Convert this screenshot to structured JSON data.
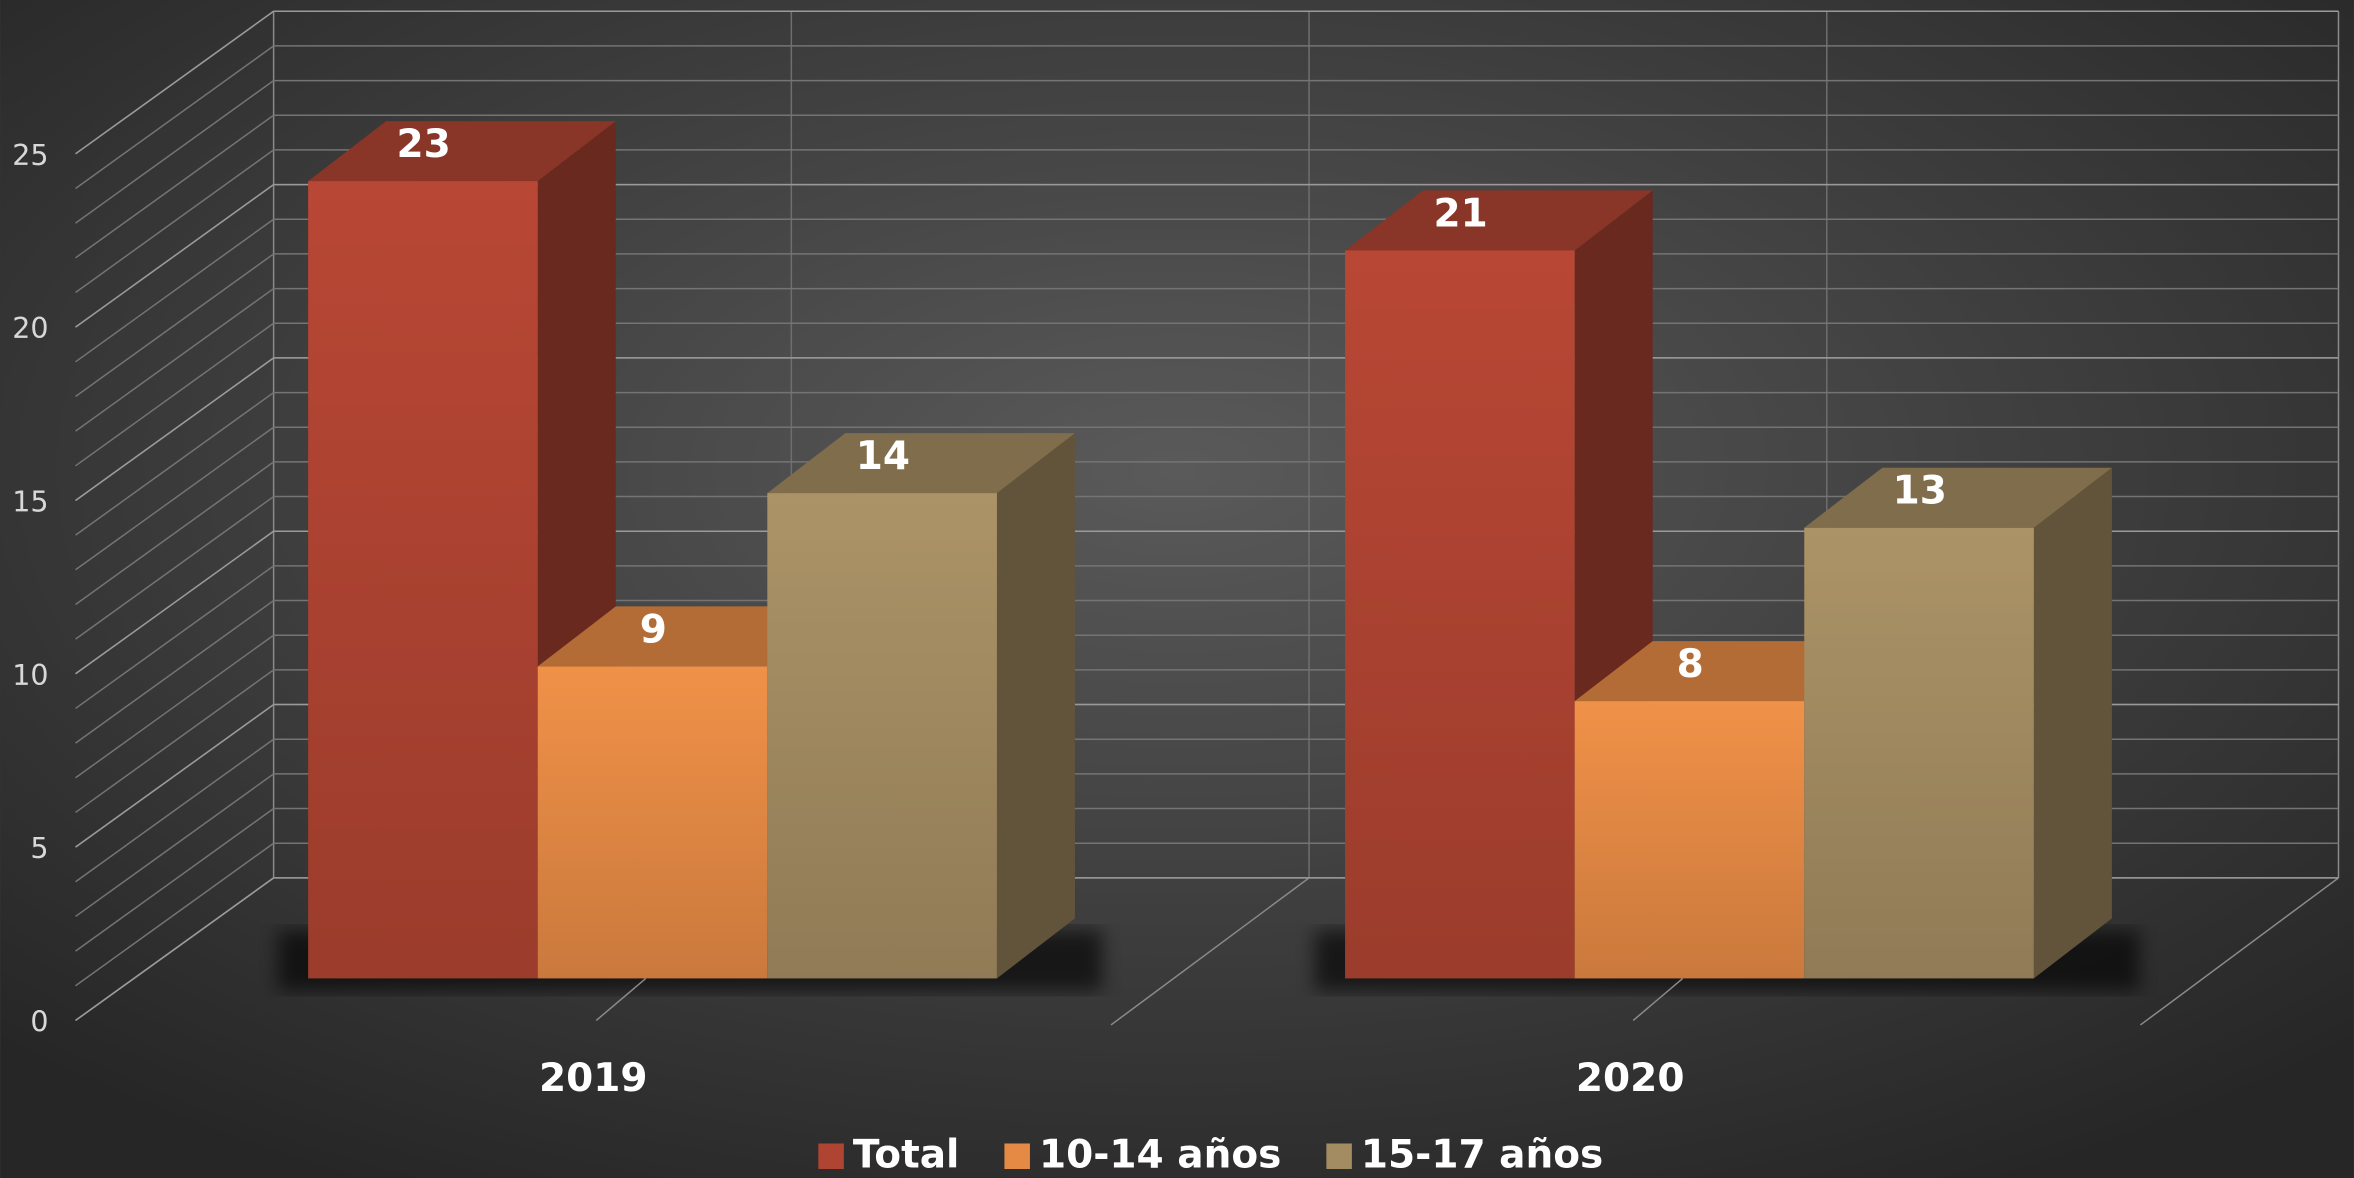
{
  "chart_data": {
    "type": "bar3d",
    "categories": [
      "2019",
      "2020"
    ],
    "series": [
      {
        "name": "Total",
        "color": "#b04432",
        "values": [
          23,
          21
        ]
      },
      {
        "name": "10-14 años",
        "color": "#e58a45",
        "values": [
          9,
          8
        ]
      },
      {
        "name": "15-17 años",
        "color": "#a48c62",
        "values": [
          14,
          13
        ]
      }
    ],
    "ylim": [
      0,
      25
    ],
    "yticks": [
      0,
      5,
      10,
      15,
      20,
      25
    ],
    "grid": true,
    "minor_grid_step": 1,
    "legend": "bottom"
  }
}
